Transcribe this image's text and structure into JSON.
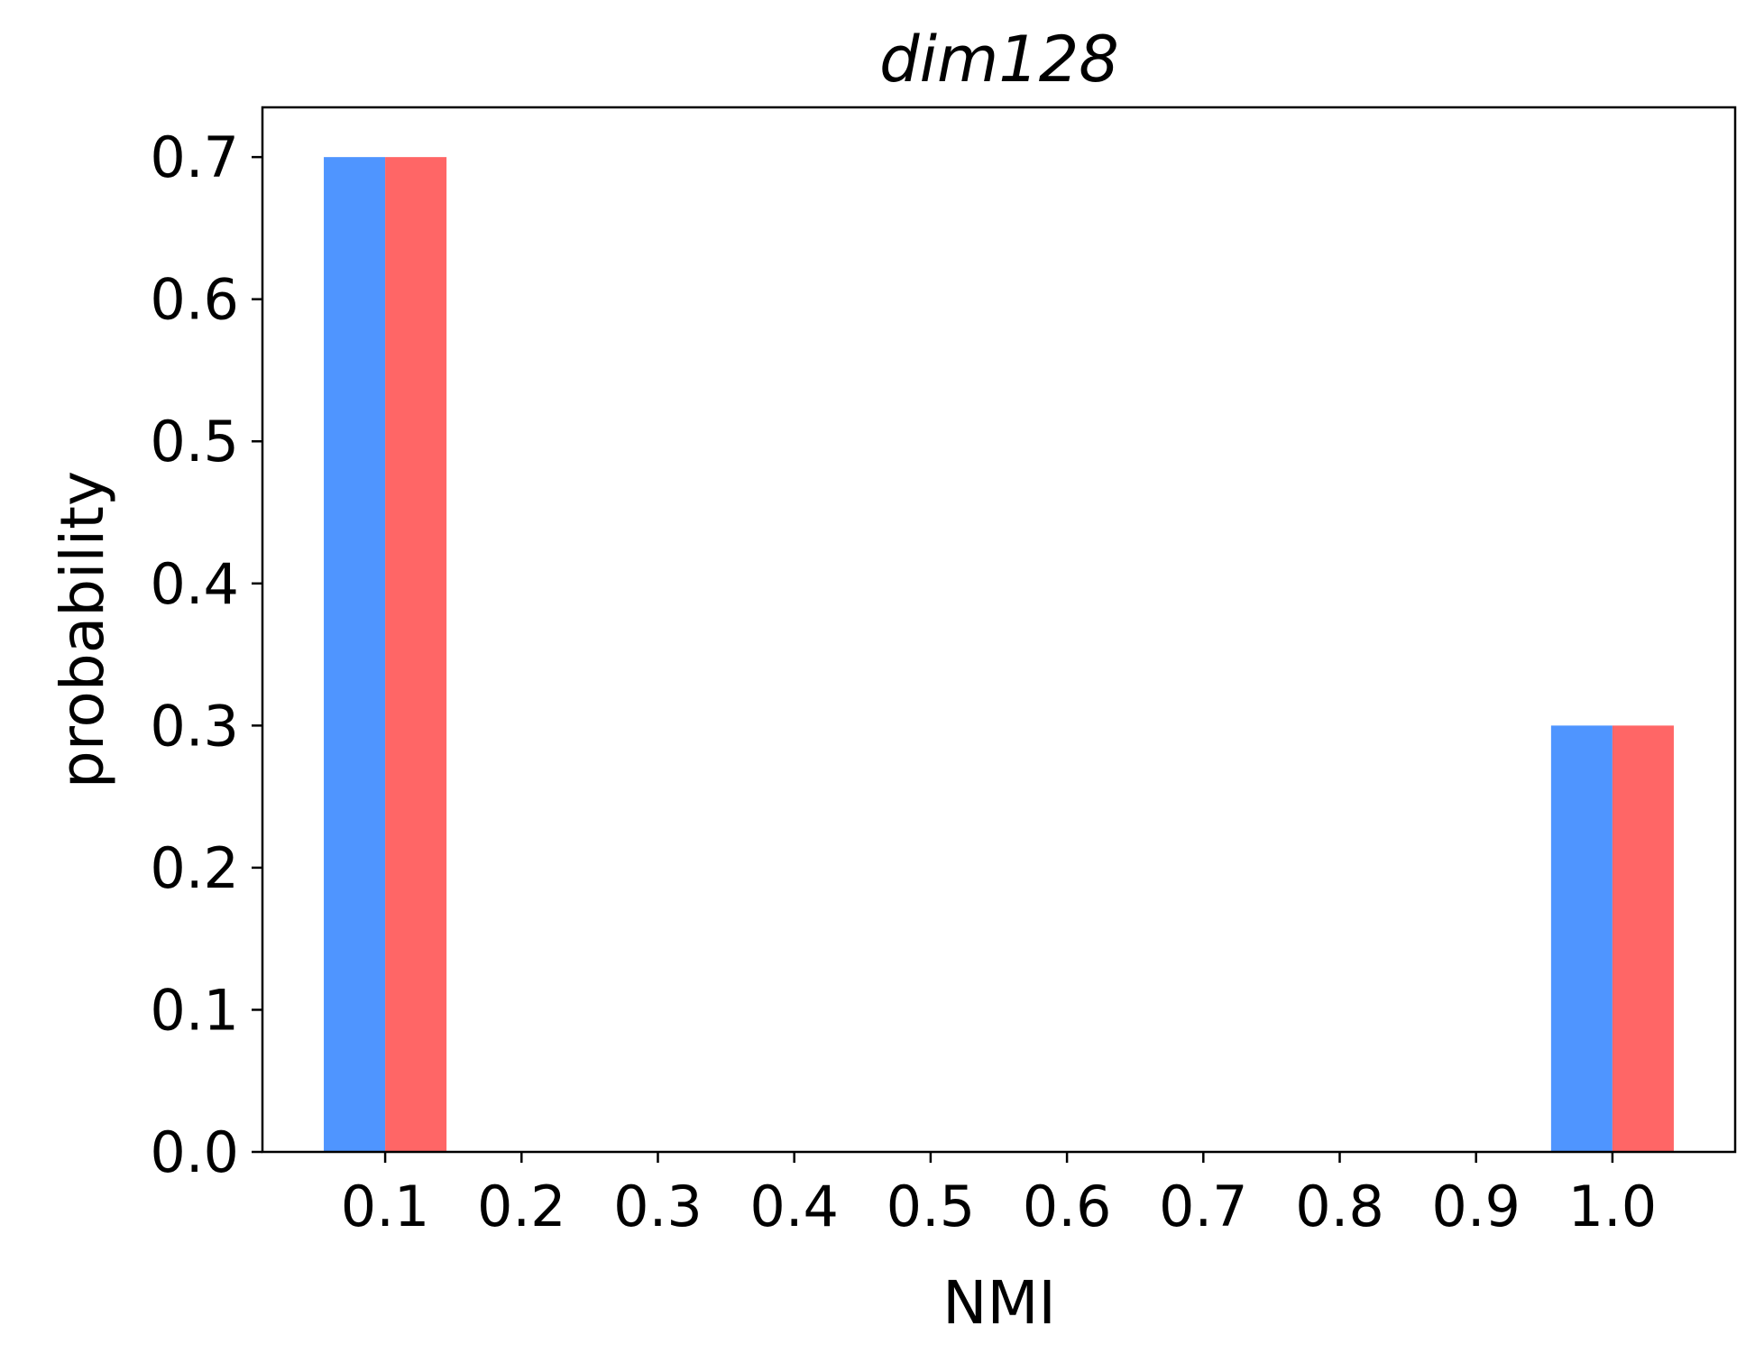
{
  "chart_data": {
    "type": "bar",
    "title": "dim128",
    "xlabel": "NMI",
    "ylabel": "probability",
    "x_ticks": [
      "0.1",
      "0.2",
      "0.3",
      "0.4",
      "0.5",
      "0.6",
      "0.7",
      "0.8",
      "0.9",
      "1.0"
    ],
    "y_ticks": [
      "0.0",
      "0.1",
      "0.2",
      "0.3",
      "0.4",
      "0.5",
      "0.6",
      "0.7"
    ],
    "ylim": [
      0,
      0.735
    ],
    "xlim": [
      0.01,
      1.09
    ],
    "grid": false,
    "series": [
      {
        "color": "#4f95ff",
        "x": [
          0.1,
          1.0
        ],
        "values": [
          0.7,
          0.3
        ]
      },
      {
        "color": "#ff6666",
        "x": [
          0.1,
          1.0
        ],
        "values": [
          0.7,
          0.3
        ]
      }
    ]
  }
}
